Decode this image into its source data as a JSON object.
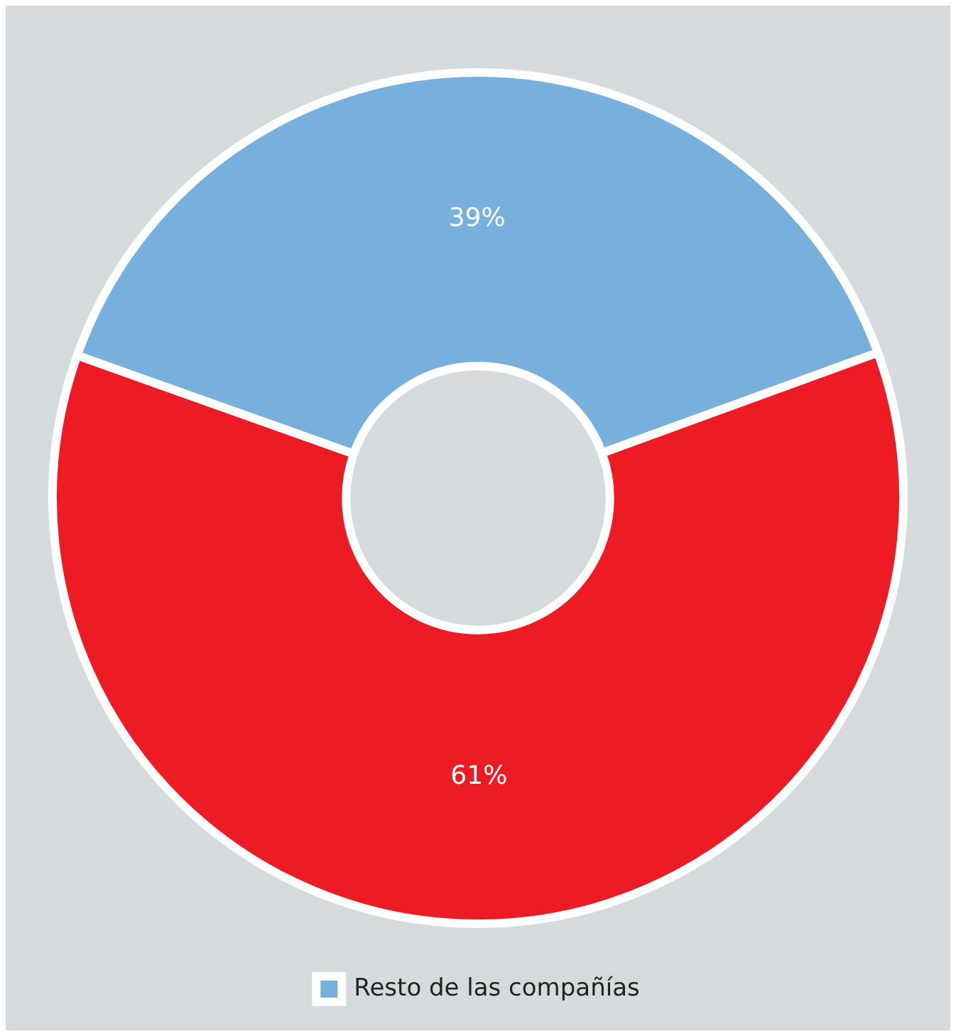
{
  "chart_data": {
    "type": "donut",
    "categories": [
      null,
      "Resto de las compañías"
    ],
    "values": [
      61,
      39
    ],
    "colors": [
      "#ed1c24",
      "#77b0dc"
    ],
    "value_labels": [
      "61%",
      "39%"
    ],
    "legend": "bottom"
  }
}
